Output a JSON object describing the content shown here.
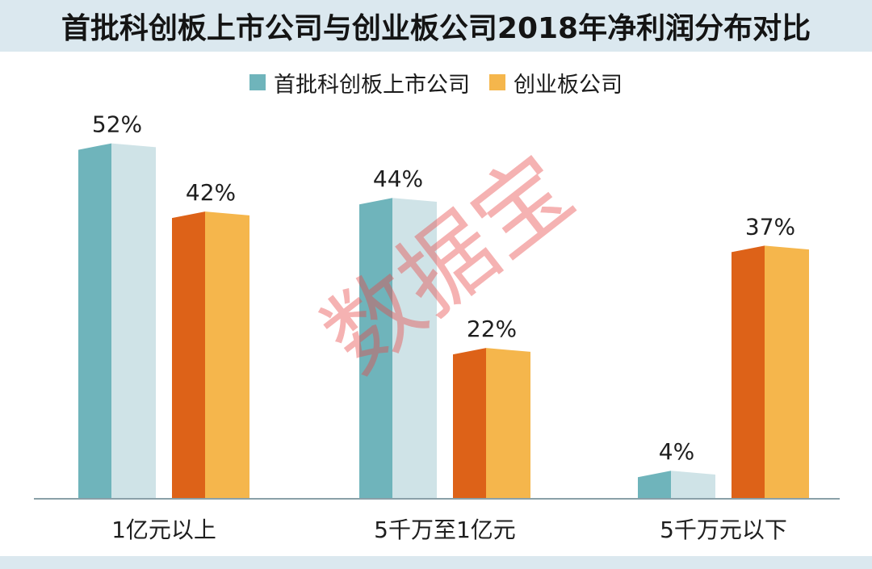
{
  "title": "首批科创板上市公司与创业板公司2018年净利润分布对比",
  "watermark": "数据宝",
  "colors": {
    "series1_front": "#6fb4bb",
    "series1_side": "#cfe3e7",
    "series2_front": "#dd6218",
    "series2_side": "#f5b64c",
    "band": "#dbe8ef",
    "axis": "#8aa0a8"
  },
  "chart_data": {
    "type": "bar",
    "categories": [
      "1亿元以上",
      "5千万至1亿元",
      "5千万元以下"
    ],
    "series": [
      {
        "name": "首批科创板上市公司",
        "values": [
          52,
          44,
          4
        ],
        "labels": [
          "52%",
          "44%",
          "4%"
        ]
      },
      {
        "name": "创业板公司",
        "values": [
          42,
          22,
          37
        ],
        "labels": [
          "42%",
          "22%",
          "37%"
        ]
      }
    ],
    "unit": "%",
    "ylim": [
      0,
      60
    ],
    "legend": "top-center",
    "grid": false
  }
}
